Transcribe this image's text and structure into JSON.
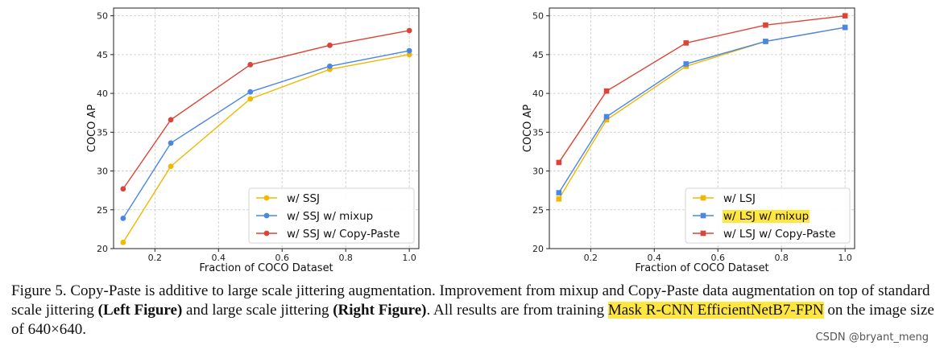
{
  "chart_data": [
    {
      "type": "line",
      "marker": "circle",
      "xlabel": "Fraction of COCO Dataset",
      "ylabel": "COCO AP",
      "xlim": [
        0.07,
        1.03
      ],
      "ylim": [
        20,
        51
      ],
      "xticks": [
        0.2,
        0.4,
        0.6,
        0.8,
        1.0
      ],
      "xtick_labels": [
        "0.2",
        "0.4",
        "0.6",
        "0.8",
        "1.0"
      ],
      "yticks": [
        20,
        25,
        30,
        35,
        40,
        45,
        50
      ],
      "ytick_labels": [
        "20",
        "25",
        "30",
        "35",
        "40",
        "45",
        "50"
      ],
      "grid": true,
      "legend_position": "lower-right",
      "x": [
        0.1,
        0.25,
        0.5,
        0.75,
        1.0
      ],
      "series": [
        {
          "name": "w/ SSJ",
          "color": "#f0b800",
          "values": [
            20.8,
            30.6,
            39.3,
            43.1,
            45.0
          ]
        },
        {
          "name": "w/ SSJ w/ mixup",
          "color": "#4a86e8",
          "values": [
            23.9,
            33.6,
            40.2,
            43.5,
            45.5
          ]
        },
        {
          "name": "w/ SSJ w/ Copy-Paste",
          "color": "#db4437",
          "values": [
            27.7,
            36.6,
            43.7,
            46.2,
            48.1
          ]
        }
      ]
    },
    {
      "type": "line",
      "marker": "square",
      "xlabel": "Fraction of COCO Dataset",
      "ylabel": "COCO AP",
      "xlim": [
        0.07,
        1.03
      ],
      "ylim": [
        20,
        51
      ],
      "xticks": [
        0.2,
        0.4,
        0.6,
        0.8,
        1.0
      ],
      "xtick_labels": [
        "0.2",
        "0.4",
        "0.6",
        "0.8",
        "1.0"
      ],
      "yticks": [
        20,
        25,
        30,
        35,
        40,
        45,
        50
      ],
      "ytick_labels": [
        "20",
        "25",
        "30",
        "35",
        "40",
        "45",
        "50"
      ],
      "grid": true,
      "legend_position": "lower-right",
      "x": [
        0.1,
        0.25,
        0.5,
        0.75,
        1.0
      ],
      "series": [
        {
          "name": "w/ LSJ",
          "color": "#f0b800",
          "values": [
            26.4,
            36.6,
            43.5,
            46.7,
            48.5
          ]
        },
        {
          "name": "w/ LSJ w/ mixup",
          "color": "#4a86e8",
          "values": [
            27.2,
            37.0,
            43.8,
            46.7,
            48.5
          ],
          "highlight": true
        },
        {
          "name": "w/ LSJ w/ Copy-Paste",
          "color": "#db4437",
          "values": [
            31.1,
            40.3,
            46.5,
            48.8,
            50.0
          ]
        }
      ]
    }
  ],
  "caption": {
    "prefix": "Figure 5. Copy-Paste is additive to large scale jittering augmentation. Improvement from mixup and Copy-Paste data augmentation on top of standard scale jittering ",
    "left_bold": "(Left Figure)",
    "middle": " and large scale jittering ",
    "right_bold": "(Right Figure)",
    "after_right": ". All results are from training ",
    "highlight": "Mask R-CNN EfficientNetB7-FPN",
    "suffix": " on the image size of 640×640."
  },
  "watermark": "CSDN @bryant_meng",
  "highlight_color": "#ffe640"
}
